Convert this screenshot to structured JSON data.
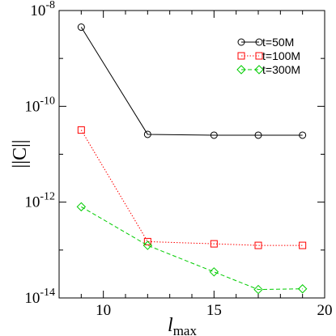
{
  "chart_data": {
    "type": "line",
    "xlabel": "l",
    "xlabel_sub": "max",
    "ylabel": "||C||",
    "xlim": [
      8,
      20
    ],
    "ylim": [
      1e-14,
      1e-08
    ],
    "yscale": "log",
    "x_ticks": [
      10,
      15,
      20
    ],
    "x_tick_labels": [
      "10",
      "15",
      "20"
    ],
    "y_ticks": [
      1e-08,
      1e-10,
      1e-12,
      1e-14
    ],
    "y_tick_labels": [
      {
        "base": "10",
        "exp": "-8"
      },
      {
        "base": "10",
        "exp": "-10"
      },
      {
        "base": "10",
        "exp": "-12"
      },
      {
        "base": "10",
        "exp": "-14"
      }
    ],
    "grid": false,
    "legend_position": "top-right",
    "series": [
      {
        "name": "t=50M",
        "color": "#000000",
        "marker": "circle",
        "dash": "solid",
        "x": [
          9,
          12,
          15,
          17,
          19
        ],
        "y": [
          4.5e-09,
          2.6e-11,
          2.5e-11,
          2.5e-11,
          2.5e-11
        ]
      },
      {
        "name": "t=100M",
        "color": "#ff0000",
        "marker": "square",
        "dash": "dotted",
        "x": [
          9,
          12,
          15,
          17,
          19
        ],
        "y": [
          3.2e-11,
          1.5e-13,
          1.35e-13,
          1.25e-13,
          1.25e-13
        ]
      },
      {
        "name": "t=300M",
        "color": "#00cc00",
        "marker": "diamond",
        "dash": "dashed",
        "x": [
          9,
          12,
          15,
          17,
          19
        ],
        "y": [
          8e-13,
          1.25e-13,
          3.5e-14,
          1.5e-14,
          1.55e-14
        ]
      }
    ]
  }
}
